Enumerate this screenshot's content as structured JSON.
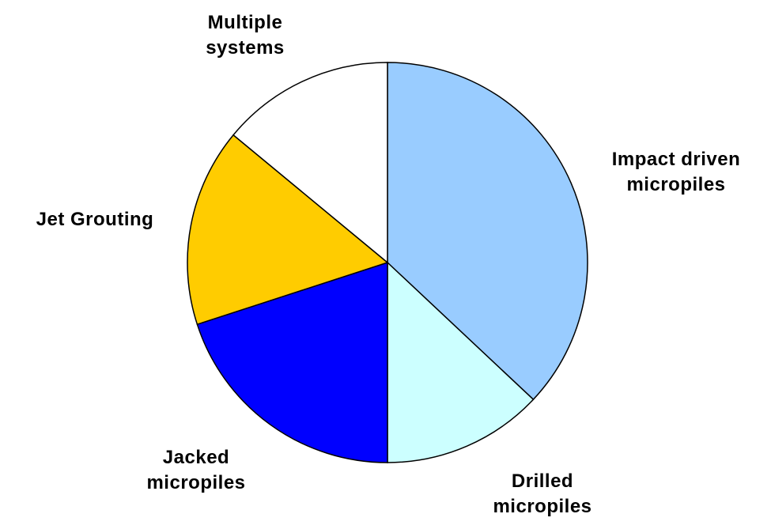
{
  "chart_data": {
    "type": "pie",
    "categories": [
      "Impact driven micropiles",
      "Drilled micropiles",
      "Jacked micropiles",
      "Jet Grouting",
      "Multiple systems"
    ],
    "values": [
      37,
      13,
      20,
      16,
      14
    ],
    "colors": [
      "#99ccff",
      "#ccffff",
      "#0000ff",
      "#ffcc00",
      "#ffffff"
    ]
  }
}
